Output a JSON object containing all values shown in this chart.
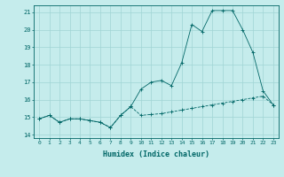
{
  "title": "",
  "xlabel": "Humidex (Indice chaleur)",
  "background_color": "#c5ecec",
  "grid_color": "#a0d4d4",
  "line_color": "#006666",
  "xlim": [
    -0.5,
    23.5
  ],
  "ylim": [
    13.8,
    21.4
  ],
  "yticks": [
    14,
    15,
    16,
    17,
    18,
    19,
    20,
    21
  ],
  "xticks": [
    0,
    1,
    2,
    3,
    4,
    5,
    6,
    7,
    8,
    9,
    10,
    11,
    12,
    13,
    14,
    15,
    16,
    17,
    18,
    19,
    20,
    21,
    22,
    23
  ],
  "line1_x": [
    0,
    1,
    2,
    3,
    4,
    5,
    6,
    7,
    8,
    9,
    10,
    11,
    12,
    13,
    14,
    15,
    16,
    17,
    18,
    19,
    20,
    21,
    22,
    23
  ],
  "line1_y": [
    14.9,
    15.1,
    14.7,
    14.9,
    14.9,
    14.8,
    14.7,
    14.4,
    15.1,
    15.6,
    15.1,
    15.15,
    15.2,
    15.3,
    15.4,
    15.5,
    15.6,
    15.7,
    15.8,
    15.9,
    16.0,
    16.1,
    16.2,
    15.7
  ],
  "line2_x": [
    0,
    1,
    2,
    3,
    4,
    5,
    6,
    7,
    8,
    9,
    10,
    11,
    12,
    13,
    14,
    15,
    16,
    17,
    18,
    19,
    20,
    21,
    22,
    23
  ],
  "line2_y": [
    14.9,
    15.1,
    14.7,
    14.9,
    14.9,
    14.8,
    14.7,
    14.4,
    15.1,
    15.6,
    16.6,
    17.0,
    17.1,
    16.8,
    18.1,
    20.3,
    19.9,
    21.1,
    21.1,
    21.1,
    20.0,
    18.7,
    16.5,
    15.7
  ]
}
